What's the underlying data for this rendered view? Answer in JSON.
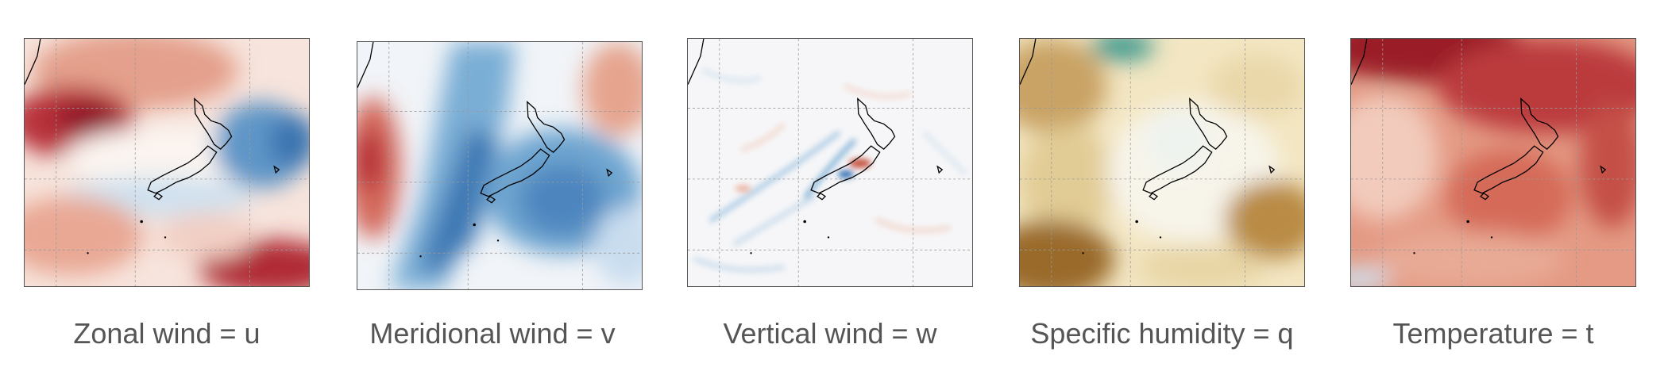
{
  "panels": [
    {
      "label": "Zonal wind = u",
      "scheme": "diverging"
    },
    {
      "label": "Meridional wind = v",
      "scheme": "diverging"
    },
    {
      "label": "Vertical wind = w",
      "scheme": "diverging"
    },
    {
      "label": "Specific humidity = q",
      "scheme": "brown-teal"
    },
    {
      "label": "Temperature = t",
      "scheme": "reds"
    }
  ],
  "colors": {
    "red_strong": "#a51b2b",
    "red_mid": "#d97b6a",
    "neutral": "#f7f7f7",
    "blue_mid": "#7fb1d6",
    "blue_strong": "#2c6aa8",
    "brown_strong": "#8a5a1c",
    "sand": "#ecdcb0",
    "teal": "#3d9a8f",
    "coastline": "#000000",
    "gridline": "#9a9a9a",
    "caption_text": "#555555"
  }
}
